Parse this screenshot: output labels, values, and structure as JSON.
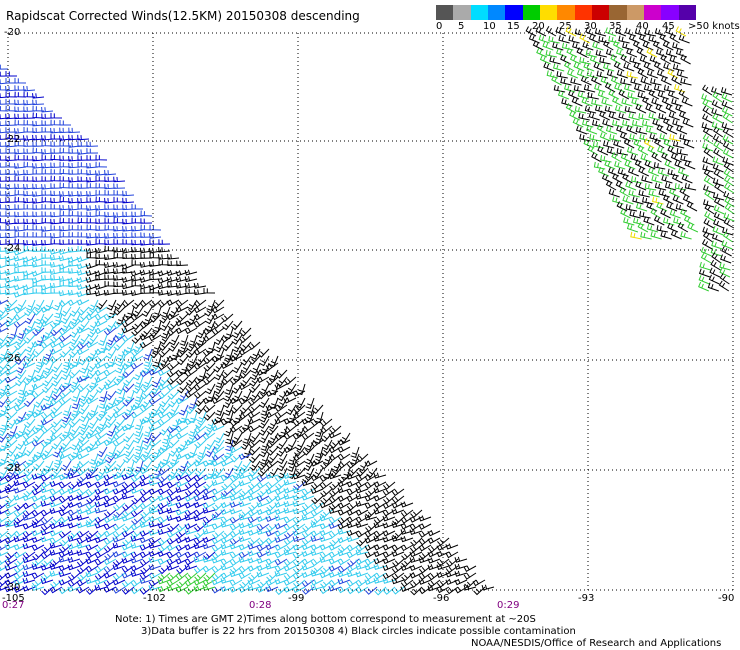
{
  "title": "Rapidscat Corrected Winds(12.5KM) 20150308 descending",
  "legend": {
    "labels": [
      "0",
      "5",
      "10",
      "15",
      "20",
      "25",
      "30",
      "35",
      "40",
      "45",
      ">50 knots"
    ],
    "colors": [
      "#555555",
      "#aaaaaa",
      "#00ddff",
      "#0088ff",
      "#0000ff",
      "#00cc00",
      "#ffdd00",
      "#ff8800",
      "#ff3300",
      "#cc0000",
      "#996633",
      "#cc9966",
      "#cc00cc",
      "#8800ff",
      "#5500aa"
    ]
  },
  "axes": {
    "lat_labels": [
      "-20",
      "-22",
      "-24",
      "-26",
      "-28",
      "-30"
    ],
    "lon_labels": [
      "-105",
      "-102",
      "-99",
      "-96",
      "-93",
      "-90"
    ]
  },
  "time_labels": [
    "0:27",
    "0:28",
    "0:29"
  ],
  "notes": [
    "Note: 1) Times are GMT 2)Times along bottom correspond to measurement at ~20S",
    "3)Data buffer is 22 hrs from 20150308 4) Black circles indicate possible contamination"
  ],
  "credit": "NOAA/NESDIS/Office of Research and Applications",
  "colors": {
    "barb_light_blue": "#33ccee",
    "barb_blue": "#2244dd",
    "barb_dark_blue": "#0000cc",
    "barb_black": "#000000",
    "barb_green": "#33cc33",
    "barb_yellow": "#eedd00",
    "grid": "#000000"
  }
}
